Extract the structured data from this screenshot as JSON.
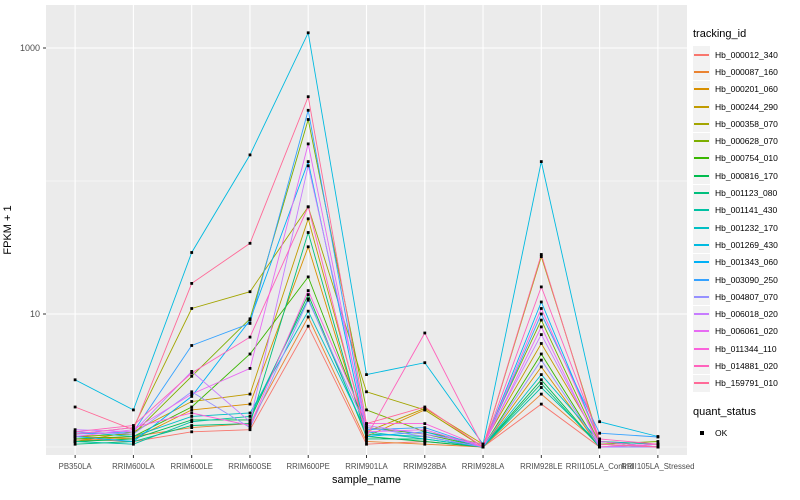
{
  "chart_data": {
    "type": "line",
    "title": "",
    "xlabel": "sample_name",
    "ylabel": "FPKM + 1",
    "y_scale": "log10",
    "axis_tick_color": "#333333",
    "tick_label_color": "#4d4d4d",
    "y_ticks": [
      {
        "label": "10",
        "value": 10
      },
      {
        "label": "1000",
        "value": 1000
      }
    ],
    "y_gridlines_major": [
      10,
      1000
    ],
    "y_gridlines_minor": [
      1,
      100
    ],
    "ylim": [
      0.87,
      2100
    ],
    "grid_on": true,
    "legend_position": "right",
    "panel_bg": "#ebebeb",
    "grid_color": "#ffffff",
    "point_color": "#000000",
    "categories": [
      "PB350LA",
      "RRIM600LA",
      "RRIM600LE",
      "RRIM600SE",
      "RRIM600PE",
      "RRIM901LA",
      "RRIM928BA",
      "RRIM928LA",
      "RRIM928LE",
      "RRII105LA_Control",
      "RRII105LA_Stressed"
    ],
    "series": [
      {
        "name": "Hb_000012_340",
        "color": "#F8766D",
        "values": [
          1.15,
          1.1,
          1.3,
          1.35,
          8.1,
          1.05,
          1.1,
          1.0,
          2.1,
          1.0,
          1.0
        ]
      },
      {
        "name": "Hb_000087_160",
        "color": "#EA8331",
        "values": [
          1.1,
          1.2,
          1.4,
          1.5,
          9.5,
          1.1,
          1.05,
          1.0,
          2.5,
          1.05,
          1.0
        ]
      },
      {
        "name": "Hb_000201_060",
        "color": "#D89000",
        "values": [
          1.2,
          1.15,
          1.9,
          2.1,
          32,
          1.2,
          1.9,
          1.0,
          4.0,
          1.0,
          1.05
        ]
      },
      {
        "name": "Hb_000244_290",
        "color": "#C09B00",
        "values": [
          1.1,
          1.3,
          2.2,
          2.5,
          52,
          1.3,
          1.95,
          1.05,
          6.0,
          1.1,
          1.0
        ]
      },
      {
        "name": "Hb_000358_070",
        "color": "#A3A500",
        "values": [
          1.25,
          1.4,
          11.0,
          14.7,
          64,
          2.6,
          1.9,
          1.0,
          27,
          1.1,
          1.05
        ]
      },
      {
        "name": "Hb_000628_070",
        "color": "#7CAE00",
        "values": [
          1.2,
          1.25,
          3.4,
          9.2,
          290,
          1.9,
          1.3,
          1.05,
          9.0,
          1.05,
          1.1
        ]
      },
      {
        "name": "Hb_000754_010",
        "color": "#39B600",
        "values": [
          1.15,
          1.2,
          2.0,
          5.0,
          19,
          1.4,
          1.25,
          1.0,
          5.0,
          1.0,
          1.0
        ]
      },
      {
        "name": "Hb_000816_170",
        "color": "#00BB4E",
        "values": [
          1.1,
          1.15,
          1.6,
          1.6,
          14,
          1.2,
          1.1,
          1.0,
          3.2,
          1.0,
          1.0
        ]
      },
      {
        "name": "Hb_001123_080",
        "color": "#00BF7D",
        "values": [
          1.05,
          1.1,
          1.45,
          1.5,
          41,
          1.15,
          1.15,
          1.0,
          3.0,
          1.0,
          1.0
        ]
      },
      {
        "name": "Hb_001141_430",
        "color": "#00C1A3",
        "values": [
          1.1,
          1.05,
          1.55,
          1.7,
          13,
          1.25,
          1.2,
          1.0,
          2.8,
          1.05,
          1.0
        ]
      },
      {
        "name": "Hb_001232_170",
        "color": "#00BFC4",
        "values": [
          1.3,
          1.2,
          1.7,
          1.8,
          10.5,
          1.3,
          1.15,
          1.0,
          3.5,
          1.1,
          1.05
        ]
      },
      {
        "name": "Hb_001269_430",
        "color": "#00BAE0",
        "values": [
          3.2,
          1.9,
          29.0,
          157,
          1300,
          3.5,
          4.3,
          1.05,
          140,
          1.55,
          1.2
        ]
      },
      {
        "name": "Hb_001343_060",
        "color": "#00B0F6",
        "values": [
          1.2,
          1.1,
          2.4,
          9.0,
          140,
          1.2,
          1.3,
          1.0,
          12.3,
          1.1,
          1.0
        ]
      },
      {
        "name": "Hb_003090_250",
        "color": "#35A2FF",
        "values": [
          1.25,
          1.3,
          5.8,
          8.5,
          340,
          1.35,
          1.4,
          1.0,
          10.0,
          1.27,
          1.19
        ]
      },
      {
        "name": "Hb_004807_070",
        "color": "#9590FF",
        "values": [
          1.3,
          1.25,
          2.6,
          1.4,
          12.7,
          1.4,
          1.2,
          1.0,
          4.5,
          1.0,
          1.0
        ]
      },
      {
        "name": "Hb_006018_020",
        "color": "#C77CFF",
        "values": [
          1.35,
          1.3,
          3.7,
          1.55,
          130,
          1.45,
          1.25,
          1.05,
          7.0,
          1.05,
          1.0
        ]
      },
      {
        "name": "Hb_006061_020",
        "color": "#E76BF3",
        "values": [
          1.2,
          1.35,
          2.5,
          3.9,
          190,
          1.3,
          1.35,
          1.0,
          8.0,
          1.0,
          1.05
        ]
      },
      {
        "name": "Hb_011344_110",
        "color": "#FA62DB",
        "values": [
          1.25,
          1.4,
          1.8,
          1.45,
          15,
          1.5,
          1.5,
          1.0,
          11.0,
          1.1,
          1.0
        ]
      },
      {
        "name": "Hb_014881_020",
        "color": "#FF62BC",
        "values": [
          1.3,
          1.45,
          3.6,
          6.7,
          64,
          1.2,
          7.2,
          1.0,
          16.0,
          1.15,
          1.05
        ]
      },
      {
        "name": "Hb_159791_010",
        "color": "#FF6A98",
        "values": [
          2.0,
          1.35,
          17.0,
          34.0,
          430,
          1.5,
          2.0,
          1.0,
          28.0,
          1.05,
          1.0
        ]
      }
    ],
    "legend": {
      "tracking_title": "tracking_id",
      "quant_title": "quant_status",
      "quant_items": [
        {
          "label": "OK"
        }
      ]
    }
  }
}
